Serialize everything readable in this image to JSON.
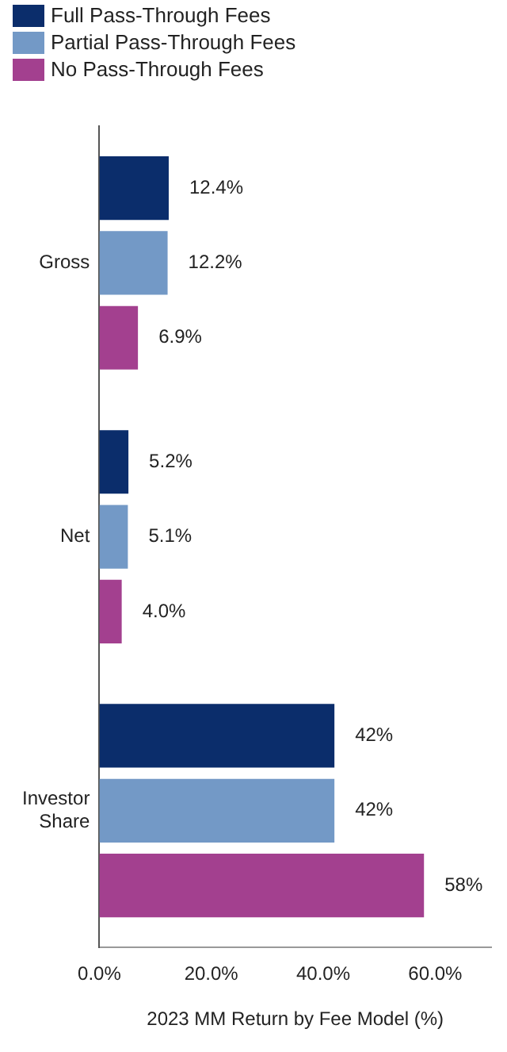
{
  "chart_data": {
    "type": "bar",
    "orientation": "horizontal",
    "xlabel": "2023 MM Return by Fee Model (%)",
    "categories": [
      "Gross",
      "Net",
      "Investor Share"
    ],
    "series": [
      {
        "name": "Full Pass-Through Fees",
        "color": "#0b2d6b",
        "values": [
          12.4,
          5.2,
          42
        ],
        "value_labels": [
          "12.4%",
          "5.2%",
          "42%"
        ]
      },
      {
        "name": "Partial Pass-Through Fees",
        "color": "#7399c6",
        "values": [
          12.2,
          5.1,
          42
        ],
        "value_labels": [
          "12.2%",
          "5.1%",
          "42%"
        ]
      },
      {
        "name": "No Pass-Through Fees",
        "color": "#a3408f",
        "values": [
          6.9,
          4.0,
          58
        ],
        "value_labels": [
          "6.9%",
          "4.0%",
          "58%"
        ]
      }
    ],
    "xlim": [
      0,
      70
    ],
    "xticks": [
      {
        "value": 0,
        "label": "0.0%"
      },
      {
        "value": 20,
        "label": "20.0%"
      },
      {
        "value": 40,
        "label": "40.0%"
      },
      {
        "value": 60,
        "label": "60.0%"
      }
    ],
    "grid": false,
    "legend": "top left"
  }
}
